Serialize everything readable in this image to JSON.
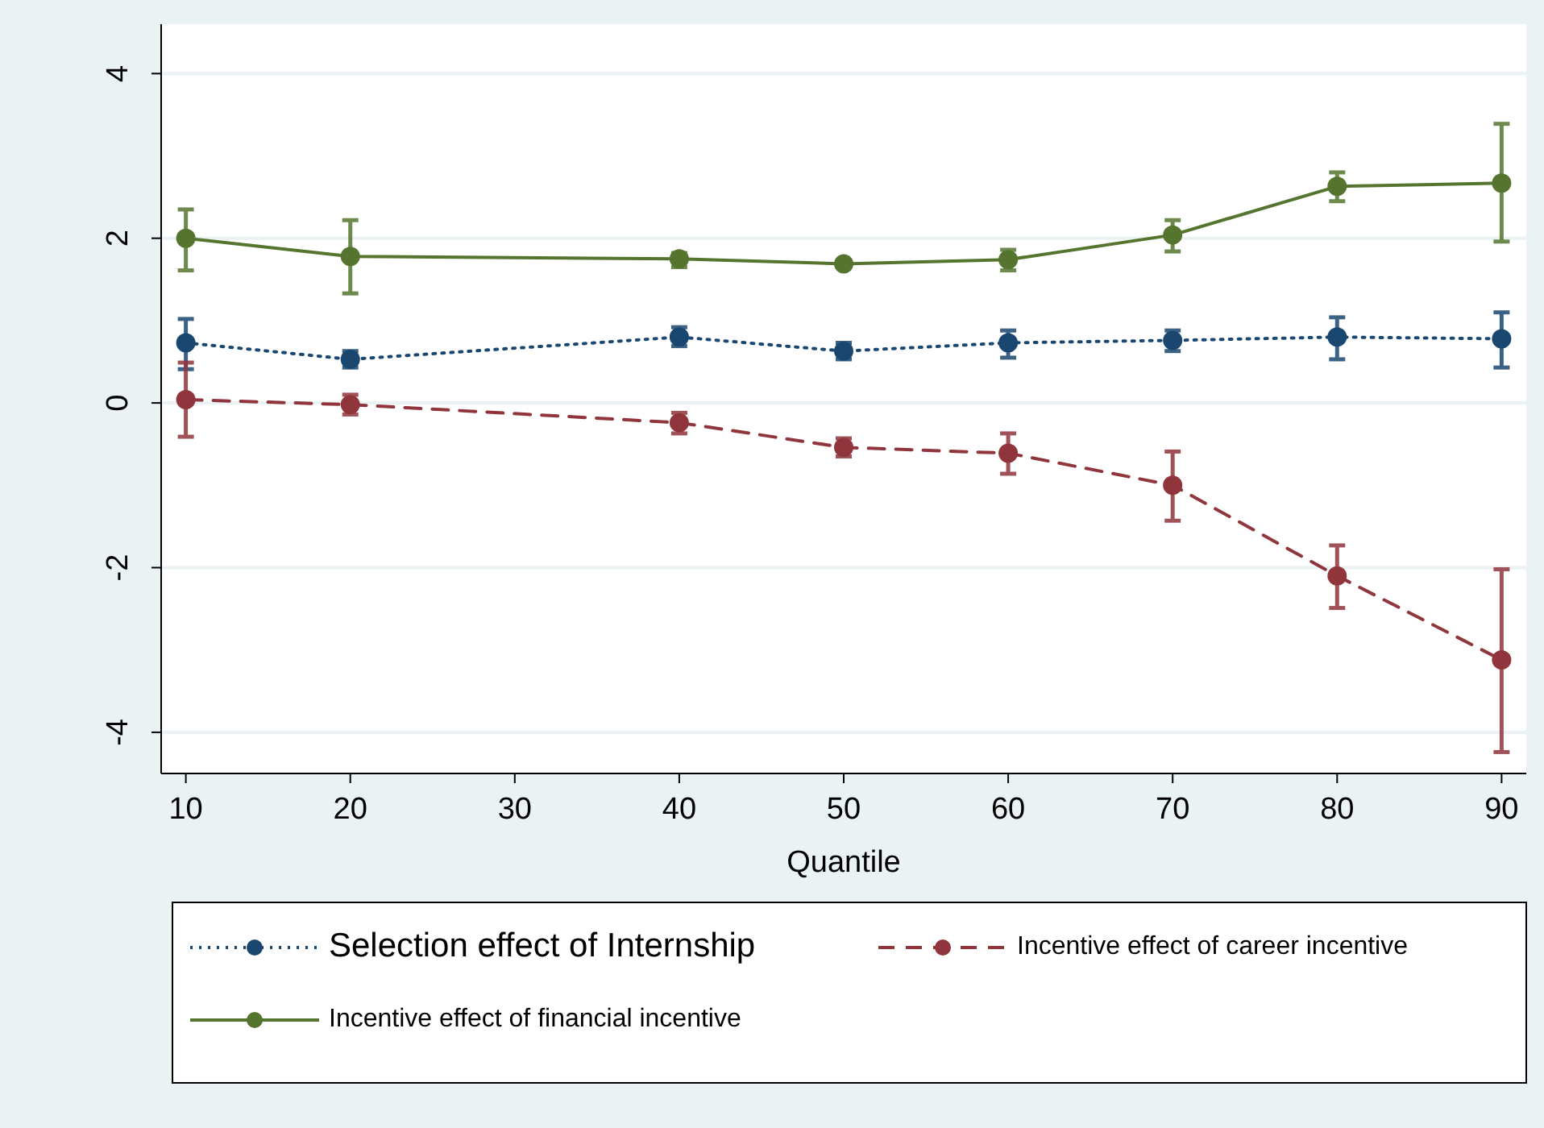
{
  "chart_data": {
    "type": "line",
    "xlabel": "Quantile",
    "x": [
      10,
      20,
      40,
      50,
      60,
      70,
      80,
      90
    ],
    "xlim": [
      8.5,
      91.5
    ],
    "xticks": [
      10,
      20,
      30,
      40,
      50,
      60,
      70,
      80,
      90
    ],
    "ylim": [
      -4.5,
      4.6
    ],
    "yticks": [
      -4,
      -2,
      0,
      2,
      4
    ],
    "grid": "y",
    "legend": "bottom",
    "marker": "circle",
    "series": [
      {
        "name": "Selection effect of Internship",
        "color": "#1a476f",
        "line_style": "dotted",
        "values": [
          0.73,
          0.53,
          0.8,
          0.63,
          0.73,
          0.76,
          0.8,
          0.78
        ],
        "errors": [
          [
            0.41,
            1.02
          ],
          [
            0.43,
            0.63
          ],
          [
            0.69,
            0.92
          ],
          [
            0.53,
            0.73
          ],
          [
            0.55,
            0.88
          ],
          [
            0.63,
            0.88
          ],
          [
            0.53,
            1.04
          ],
          [
            0.43,
            1.1
          ]
        ]
      },
      {
        "name": "Incentive effect of career incentive",
        "color": "#90353b",
        "line_style": "dashed",
        "values": [
          0.04,
          -0.02,
          -0.24,
          -0.54,
          -0.61,
          -1.0,
          -2.1,
          -3.12
        ],
        "errors": [
          [
            -0.41,
            0.49
          ],
          [
            -0.14,
            0.1
          ],
          [
            -0.37,
            -0.12
          ],
          [
            -0.65,
            -0.43
          ],
          [
            -0.86,
            -0.37
          ],
          [
            -1.43,
            -0.59
          ],
          [
            -2.49,
            -1.73
          ],
          [
            -4.24,
            -2.02
          ]
        ]
      },
      {
        "name": "Incentive effect of financial incentive",
        "color": "#55752f",
        "line_style": "solid",
        "values": [
          2.0,
          1.78,
          1.75,
          1.69,
          1.74,
          2.04,
          2.63,
          2.67
        ],
        "errors": [
          [
            1.61,
            2.35
          ],
          [
            1.33,
            2.22
          ],
          [
            1.65,
            1.82
          ],
          [
            1.66,
            1.72
          ],
          [
            1.61,
            1.86
          ],
          [
            1.84,
            2.22
          ],
          [
            2.45,
            2.8
          ],
          [
            1.96,
            3.39
          ]
        ]
      }
    ]
  }
}
